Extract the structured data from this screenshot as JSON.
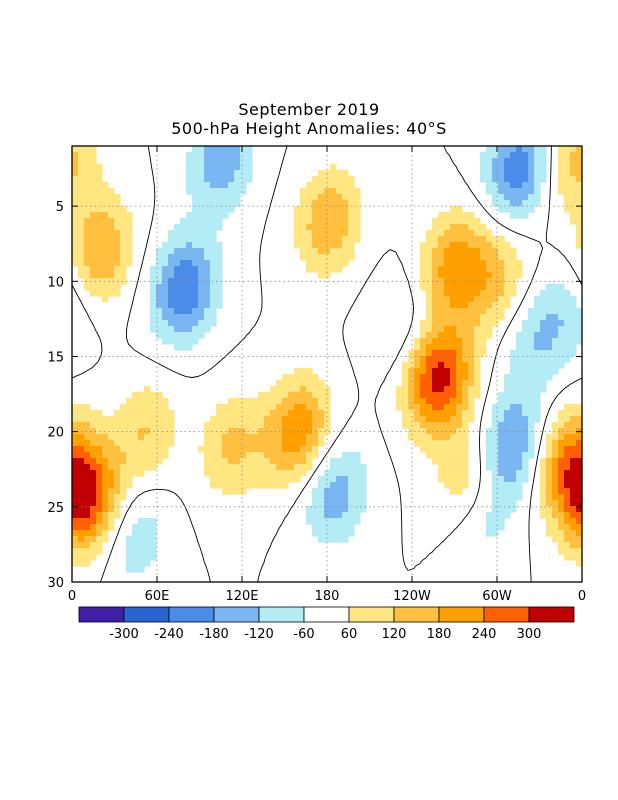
{
  "chart_data": {
    "type": "heatmap",
    "title": "September 2019",
    "subtitle": "500-hPa Height Anomalies: 40°S",
    "x_ticks": [
      {
        "label": "0",
        "lon": 0
      },
      {
        "label": "60E",
        "lon": 60
      },
      {
        "label": "120E",
        "lon": 120
      },
      {
        "label": "180",
        "lon": 180
      },
      {
        "label": "120W",
        "lon": 240
      },
      {
        "label": "60W",
        "lon": 300
      },
      {
        "label": "0",
        "lon": 360
      }
    ],
    "xlim": [
      0,
      360
    ],
    "y_ticks": [
      5,
      10,
      15,
      20,
      25,
      30
    ],
    "ylim": [
      1,
      30
    ],
    "y_direction": "top-to-bottom",
    "grid": "dotted",
    "contour_label": "0",
    "colorbar": {
      "colors": [
        "#3f1fa8",
        "#2a64d2",
        "#4a8ce8",
        "#7ab6f2",
        "#b4ecf6",
        "#ffffff",
        "#ffe680",
        "#ffc040",
        "#ffa000",
        "#ff6000",
        "#c00000"
      ],
      "labels": [
        "-300",
        "-240",
        "-180",
        "-120",
        "-60",
        "60",
        "120",
        "180",
        "240",
        "300"
      ]
    },
    "features": [
      {
        "lon": 20,
        "day": 8,
        "value": 180
      },
      {
        "lon": 79,
        "day": 10.5,
        "value": -230
      },
      {
        "lon": 270,
        "day": 9,
        "value": 210
      },
      {
        "lon": 259,
        "day": 16.5,
        "value": 330
      },
      {
        "lon": 280,
        "day": 23,
        "value": 120
      },
      {
        "lon": 181,
        "day": 6,
        "value": 170
      },
      {
        "lon": 160,
        "day": 20,
        "value": 230
      },
      {
        "lon": 10,
        "day": 24.5,
        "value": 310
      },
      {
        "lon": 315,
        "day": 2.5,
        "value": -220
      },
      {
        "lon": 310,
        "day": 21,
        "value": -200
      },
      {
        "lon": 105,
        "day": 2,
        "value": -160
      },
      {
        "lon": 185,
        "day": 24,
        "value": -160
      },
      {
        "lon": 113,
        "day": 21,
        "value": 130
      },
      {
        "lon": 300,
        "day": 10,
        "value": 130
      },
      {
        "lon": 350,
        "day": 22,
        "value": 220
      },
      {
        "lon": 355,
        "day": 2,
        "value": 140
      },
      {
        "lon": 232,
        "day": 13,
        "value": -70
      },
      {
        "lon": 325,
        "day": 14,
        "value": -100
      },
      {
        "lon": 350,
        "day": 12,
        "value": -90
      },
      {
        "lon": 52,
        "day": 20,
        "value": 120
      },
      {
        "lon": 45,
        "day": 27,
        "value": -100
      },
      {
        "lon": 290,
        "day": 26,
        "value": -80
      }
    ]
  }
}
